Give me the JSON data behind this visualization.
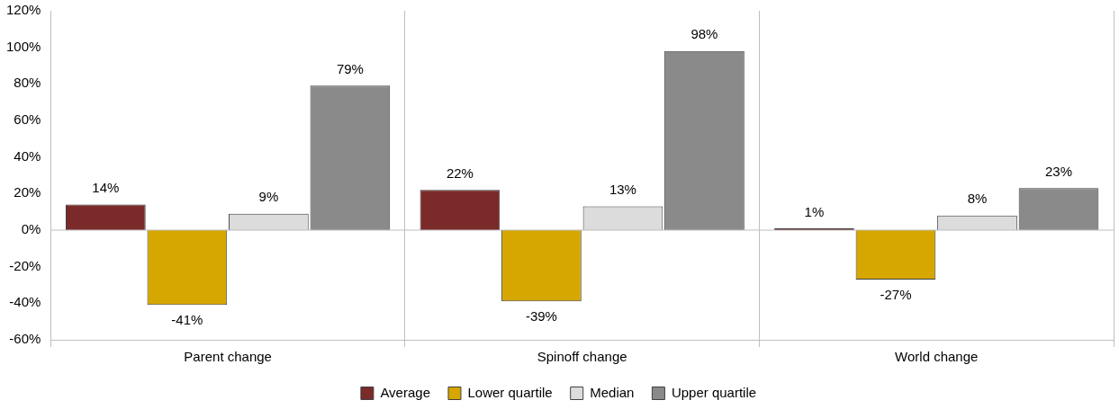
{
  "chart_data": {
    "type": "bar",
    "categories": [
      "Parent change",
      "Spinoff change",
      "World change"
    ],
    "series": [
      {
        "name": "Average",
        "color": "#7b2a2a",
        "values": [
          14,
          22,
          1
        ],
        "value_labels": [
          "14%",
          "22%",
          "1%"
        ]
      },
      {
        "name": "Lower quartile",
        "color": "#d6a700",
        "values": [
          -41,
          -39,
          -27
        ],
        "value_labels": [
          "-41%",
          "-39%",
          "-27%"
        ]
      },
      {
        "name": "Median",
        "color": "#dcdcdc",
        "values": [
          9,
          13,
          8
        ],
        "value_labels": [
          "9%",
          "13%",
          "8%"
        ]
      },
      {
        "name": "Upper quartile",
        "color": "#8a8a8a",
        "values": [
          79,
          98,
          23
        ],
        "value_labels": [
          "79%",
          "98%",
          "23%"
        ]
      }
    ],
    "ylim": [
      -60,
      120
    ],
    "yticks": [
      {
        "value": -60,
        "label": "-60%"
      },
      {
        "value": -40,
        "label": "-40%"
      },
      {
        "value": -20,
        "label": "-20%"
      },
      {
        "value": 0,
        "label": "0%"
      },
      {
        "value": 20,
        "label": "20%"
      },
      {
        "value": 40,
        "label": "40%"
      },
      {
        "value": 60,
        "label": "60%"
      },
      {
        "value": 80,
        "label": "80%"
      },
      {
        "value": 100,
        "label": "100%"
      },
      {
        "value": 120,
        "label": "120%"
      }
    ],
    "ref_lines": [
      {
        "axis": "y",
        "value": 0,
        "color": "#bfbfbf"
      }
    ],
    "grid": "x",
    "legend": "bottom"
  }
}
